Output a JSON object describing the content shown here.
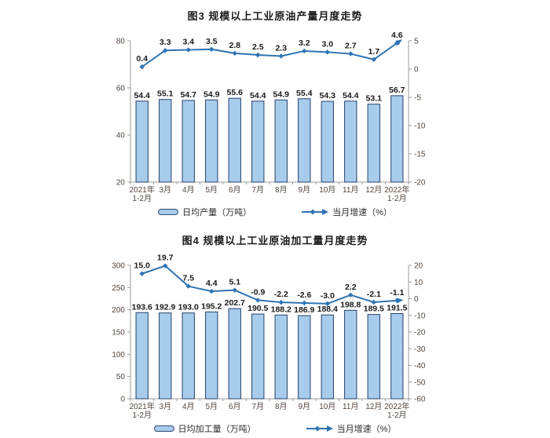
{
  "page": {
    "background": "#ffffff"
  },
  "colors": {
    "bar_fill": "#A8CCEC",
    "bar_border": "#25416b",
    "line": "#2E74B5",
    "axis_line": "#9b9b9b",
    "tick_label": "#55463c",
    "data_label": "#1a1a1a",
    "title": "#1a1a1a"
  },
  "chart_data": [
    {
      "type": "bar+line",
      "title": "图3 规模以上工业原油产量月度走势",
      "categories": [
        "2021年\n1-2月",
        "3月",
        "4月",
        "5月",
        "6月",
        "7月",
        "8月",
        "9月",
        "10月",
        "11月",
        "12月",
        "2022年\n1-2月"
      ],
      "series": [
        {
          "name": "日均产量（万吨）",
          "type": "bar",
          "axis": "left",
          "values": [
            54.4,
            55.1,
            54.7,
            54.9,
            55.6,
            54.4,
            54.9,
            55.4,
            54.3,
            54.4,
            53.1,
            56.7
          ]
        },
        {
          "name": "当月增速（%）",
          "type": "line",
          "axis": "right",
          "values": [
            0.4,
            3.3,
            3.4,
            3.5,
            2.8,
            2.5,
            2.3,
            3.2,
            3.0,
            2.7,
            1.7,
            4.6
          ]
        }
      ],
      "left_axis": {
        "min": 20,
        "max": 80,
        "step": 20
      },
      "right_axis": {
        "min": -20,
        "max": 5,
        "step": 5
      },
      "grid": false,
      "legend_position": "bottom"
    },
    {
      "type": "bar+line",
      "title": "图4 规模以上工业原油加工量月度走势",
      "categories": [
        "2021年\n1-2月",
        "3月",
        "4月",
        "5月",
        "6月",
        "7月",
        "8月",
        "9月",
        "10月",
        "11月",
        "12月",
        "2022年\n1-2月"
      ],
      "series": [
        {
          "name": "日均加工量（万吨）",
          "type": "bar",
          "axis": "left",
          "values": [
            193.6,
            192.9,
            193.0,
            195.2,
            202.7,
            190.5,
            188.2,
            186.9,
            188.4,
            198.8,
            189.5,
            191.5
          ]
        },
        {
          "name": "当月增速（%）",
          "type": "line",
          "axis": "right",
          "values": [
            15.0,
            19.7,
            7.5,
            4.4,
            5.1,
            -0.9,
            -2.2,
            -2.6,
            -3.0,
            2.2,
            -2.1,
            -1.1
          ]
        }
      ],
      "left_axis": {
        "min": 0,
        "max": 300,
        "step": 50
      },
      "right_axis": {
        "min": -60,
        "max": 20,
        "step": 10
      },
      "grid": false,
      "legend_position": "bottom"
    }
  ]
}
